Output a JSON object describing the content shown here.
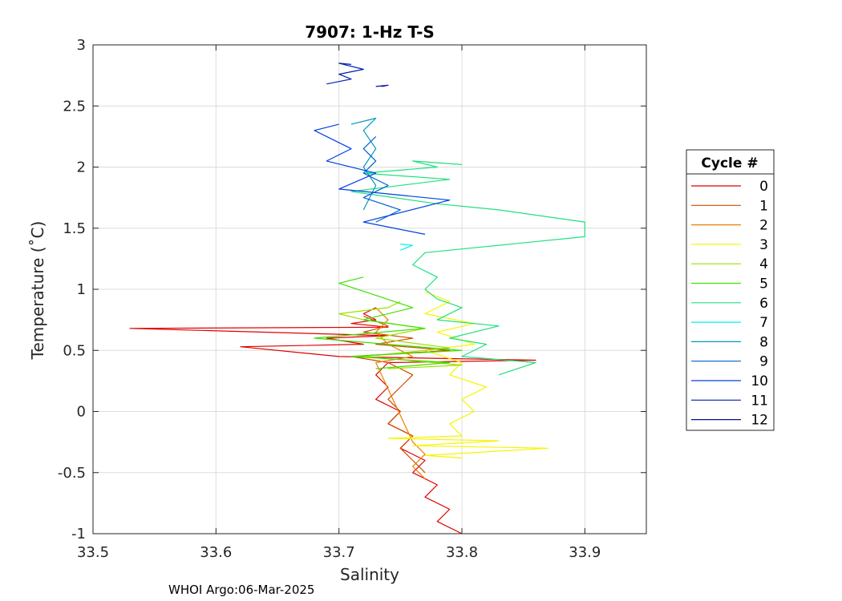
{
  "chart_data": {
    "type": "line",
    "title": "7907: 1-Hz T-S",
    "xlabel": "Salinity",
    "ylabel": "Temperature (˚C)",
    "xlim": [
      33.5,
      33.95
    ],
    "ylim": [
      -1,
      3
    ],
    "xticks": [
      33.5,
      33.6,
      33.7,
      33.8,
      33.9
    ],
    "xtick_labels": [
      "33.5",
      "33.6",
      "33.7",
      "33.8",
      "33.9"
    ],
    "yticks": [
      -1,
      -0.5,
      0,
      0.5,
      1,
      1.5,
      2,
      2.5,
      3
    ],
    "ytick_labels": [
      "-1",
      "-0.5",
      "0",
      "0.5",
      "1",
      "1.5",
      "2",
      "2.5",
      "3"
    ],
    "grid": true,
    "legend": {
      "title": "Cycle #",
      "position": "right"
    },
    "footer": "WHOI Argo:06-Mar-2025",
    "series": [
      {
        "name": "0",
        "color": "#e00000",
        "points": [
          [
            33.8,
            -1.0
          ],
          [
            33.78,
            -0.9
          ],
          [
            33.79,
            -0.8
          ],
          [
            33.77,
            -0.7
          ],
          [
            33.78,
            -0.6
          ],
          [
            33.76,
            -0.5
          ],
          [
            33.77,
            -0.4
          ],
          [
            33.75,
            -0.3
          ],
          [
            33.76,
            -0.2
          ],
          [
            33.74,
            -0.1
          ],
          [
            33.75,
            0.0
          ],
          [
            33.73,
            0.1
          ],
          [
            33.74,
            0.2
          ],
          [
            33.73,
            0.3
          ],
          [
            33.74,
            0.4
          ],
          [
            33.86,
            0.42
          ],
          [
            33.7,
            0.45
          ],
          [
            33.62,
            0.53
          ],
          [
            33.72,
            0.55
          ],
          [
            33.69,
            0.6
          ],
          [
            33.74,
            0.62
          ],
          [
            33.53,
            0.68
          ],
          [
            33.74,
            0.69
          ],
          [
            33.71,
            0.72
          ],
          [
            33.73,
            0.75
          ],
          [
            33.72,
            0.8
          ],
          [
            33.73,
            0.85
          ]
        ]
      },
      {
        "name": "1",
        "color": "#d04a00",
        "points": [
          [
            33.77,
            -0.5
          ],
          [
            33.76,
            -0.4
          ],
          [
            33.75,
            -0.3
          ],
          [
            33.76,
            -0.2
          ],
          [
            33.74,
            -0.1
          ],
          [
            33.75,
            0.0
          ],
          [
            33.74,
            0.1
          ],
          [
            33.75,
            0.2
          ],
          [
            33.76,
            0.3
          ],
          [
            33.74,
            0.4
          ],
          [
            33.71,
            0.45
          ],
          [
            33.79,
            0.5
          ],
          [
            33.73,
            0.55
          ],
          [
            33.76,
            0.6
          ],
          [
            33.72,
            0.65
          ],
          [
            33.74,
            0.7
          ],
          [
            33.72,
            0.78
          ]
        ]
      },
      {
        "name": "2",
        "color": "#e98000",
        "points": [
          [
            33.77,
            -0.55
          ],
          [
            33.76,
            -0.45
          ],
          [
            33.77,
            -0.35
          ],
          [
            33.76,
            -0.25
          ],
          [
            33.73,
            0.4
          ],
          [
            33.76,
            0.45
          ],
          [
            33.74,
            0.55
          ],
          [
            33.73,
            0.65
          ],
          [
            33.74,
            0.75
          ],
          [
            33.73,
            0.85
          ]
        ]
      },
      {
        "name": "3",
        "color": "#f5f500",
        "points": [
          [
            33.8,
            -0.38
          ],
          [
            33.77,
            -0.36
          ],
          [
            33.87,
            -0.3
          ],
          [
            33.76,
            -0.28
          ],
          [
            33.83,
            -0.24
          ],
          [
            33.74,
            -0.22
          ],
          [
            33.8,
            -0.2
          ],
          [
            33.79,
            -0.1
          ],
          [
            33.81,
            0.0
          ],
          [
            33.8,
            0.1
          ],
          [
            33.82,
            0.2
          ],
          [
            33.79,
            0.3
          ],
          [
            33.8,
            0.4
          ],
          [
            33.77,
            0.5
          ],
          [
            33.81,
            0.55
          ],
          [
            33.78,
            0.65
          ],
          [
            33.81,
            0.72
          ],
          [
            33.77,
            0.8
          ],
          [
            33.79,
            0.9
          ],
          [
            33.77,
            0.98
          ]
        ]
      },
      {
        "name": "4",
        "color": "#9ee000",
        "points": [
          [
            33.74,
            0.35
          ],
          [
            33.8,
            0.38
          ],
          [
            33.72,
            0.45
          ],
          [
            33.79,
            0.52
          ],
          [
            33.73,
            0.6
          ],
          [
            33.77,
            0.68
          ],
          [
            33.72,
            0.75
          ],
          [
            33.7,
            0.8
          ],
          [
            33.74,
            0.85
          ],
          [
            33.75,
            0.9
          ]
        ]
      },
      {
        "name": "5",
        "color": "#3ee000",
        "points": [
          [
            33.73,
            0.35
          ],
          [
            33.79,
            0.4
          ],
          [
            33.71,
            0.45
          ],
          [
            33.8,
            0.5
          ],
          [
            33.68,
            0.6
          ],
          [
            33.77,
            0.68
          ],
          [
            33.72,
            0.75
          ],
          [
            33.76,
            0.85
          ],
          [
            33.73,
            0.95
          ],
          [
            33.7,
            1.05
          ],
          [
            33.72,
            1.1
          ]
        ]
      },
      {
        "name": "6",
        "color": "#20e080",
        "points": [
          [
            33.83,
            0.3
          ],
          [
            33.86,
            0.4
          ],
          [
            33.8,
            0.45
          ],
          [
            33.82,
            0.55
          ],
          [
            33.79,
            0.6
          ],
          [
            33.83,
            0.7
          ],
          [
            33.78,
            0.75
          ],
          [
            33.8,
            0.85
          ],
          [
            33.78,
            0.92
          ],
          [
            33.77,
            1.0
          ],
          [
            33.78,
            1.1
          ],
          [
            33.76,
            1.2
          ],
          [
            33.77,
            1.3
          ],
          [
            33.8,
            1.33
          ],
          [
            33.9,
            1.43
          ],
          [
            33.9,
            1.55
          ],
          [
            33.83,
            1.65
          ],
          [
            33.78,
            1.7
          ],
          [
            33.71,
            1.8
          ],
          [
            33.79,
            1.9
          ],
          [
            33.72,
            1.95
          ],
          [
            33.78,
            2.0
          ],
          [
            33.76,
            2.05
          ],
          [
            33.8,
            2.02
          ]
        ]
      },
      {
        "name": "7",
        "color": "#00f0f0",
        "points": [
          [
            33.75,
            1.32
          ],
          [
            33.76,
            1.36
          ],
          [
            33.75,
            1.37
          ]
        ]
      },
      {
        "name": "8",
        "color": "#0098c0",
        "points": [
          [
            33.72,
            1.65
          ],
          [
            33.73,
            1.85
          ],
          [
            33.72,
            2.0
          ],
          [
            33.73,
            2.15
          ],
          [
            33.72,
            2.3
          ],
          [
            33.73,
            2.4
          ],
          [
            33.71,
            2.35
          ]
        ]
      },
      {
        "name": "9",
        "color": "#0060d0",
        "points": [
          [
            33.73,
            1.55
          ],
          [
            33.75,
            1.65
          ],
          [
            33.72,
            1.75
          ],
          [
            33.74,
            1.85
          ],
          [
            33.72,
            1.95
          ],
          [
            33.73,
            2.05
          ],
          [
            33.72,
            2.15
          ],
          [
            33.73,
            2.25
          ]
        ]
      },
      {
        "name": "10",
        "color": "#0040e0",
        "points": [
          [
            33.77,
            1.45
          ],
          [
            33.72,
            1.55
          ],
          [
            33.79,
            1.73
          ],
          [
            33.7,
            1.82
          ],
          [
            33.73,
            1.95
          ],
          [
            33.69,
            2.05
          ],
          [
            33.71,
            2.15
          ],
          [
            33.68,
            2.3
          ],
          [
            33.7,
            2.35
          ]
        ]
      },
      {
        "name": "11",
        "color": "#0020b0",
        "points": [
          [
            33.69,
            2.68
          ],
          [
            33.71,
            2.72
          ],
          [
            33.7,
            2.76
          ],
          [
            33.72,
            2.8
          ],
          [
            33.7,
            2.85
          ],
          [
            33.71,
            2.84
          ]
        ]
      },
      {
        "name": "12",
        "color": "#001090",
        "points": [
          [
            33.73,
            2.66
          ],
          [
            33.74,
            2.67
          ],
          [
            33.735,
            2.66
          ]
        ]
      }
    ]
  }
}
